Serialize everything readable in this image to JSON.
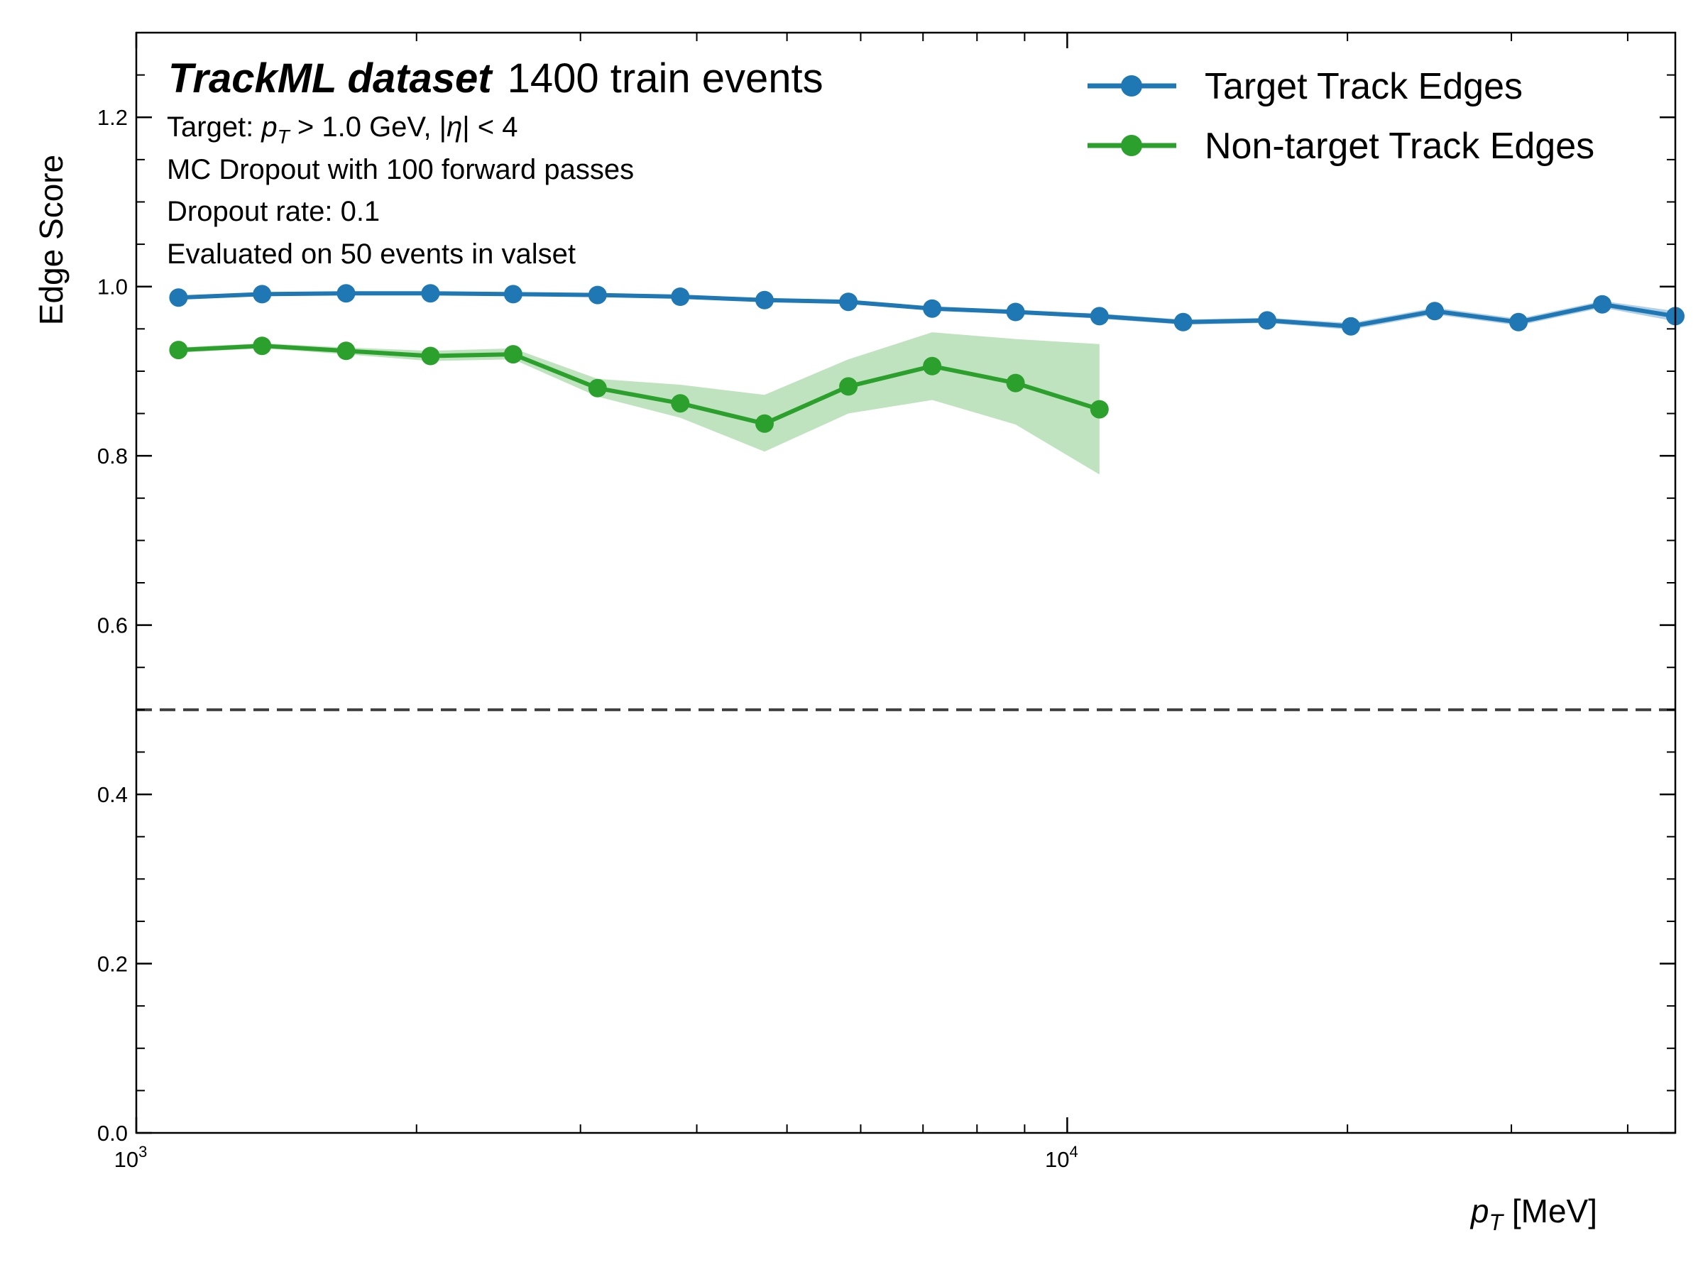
{
  "chart_data": {
    "type": "line",
    "title_bold": "TrackML dataset",
    "title_rest": "1400 train events",
    "annotations": {
      "target_prefix": "Target: ",
      "target_pt": "p",
      "target_pt_sub": "T",
      "target_rest": " > 1.0 GeV, |",
      "target_eta": "η",
      "target_tail": "| < 4",
      "line2": "MC Dropout with 100 forward passes",
      "line3": "Dropout rate: 0.1",
      "line4": "Evaluated on 50 events in valset"
    },
    "xlabel": {
      "symbol": "p",
      "sub": "T",
      "unit": " [MeV]"
    },
    "ylabel": "Edge Score",
    "xscale": "log",
    "xlim": [
      1000,
      45000
    ],
    "ylim": [
      0.0,
      1.3
    ],
    "yticks": [
      "0.0",
      "0.2",
      "0.4",
      "0.6",
      "0.8",
      "1.0",
      "1.2"
    ],
    "xticks": [
      {
        "base": "10",
        "exp": "3"
      },
      {
        "base": "10",
        "exp": "4"
      }
    ],
    "threshold": 0.5,
    "legend_position": "top-right",
    "colors": {
      "target": "#1f77b4",
      "non_target": "#2ca02c",
      "non_target_band": "#2ca02c",
      "threshold": "#404040"
    },
    "series": [
      {
        "name": "Target Track Edges",
        "x": [
          1110,
          1365,
          1680,
          2070,
          2540,
          3130,
          3840,
          4730,
          5820,
          7160,
          8800,
          10830,
          13320,
          16400,
          20170,
          24820,
          30530,
          37560,
          45000
        ],
        "y": [
          0.987,
          0.991,
          0.992,
          0.992,
          0.991,
          0.99,
          0.988,
          0.984,
          0.982,
          0.974,
          0.97,
          0.965,
          0.958,
          0.96,
          0.953,
          0.971,
          0.958,
          0.979,
          0.965
        ],
        "band_low": [
          0.985,
          0.99,
          0.991,
          0.991,
          0.99,
          0.989,
          0.987,
          0.982,
          0.98,
          0.972,
          0.968,
          0.962,
          0.955,
          0.957,
          0.949,
          0.967,
          0.954,
          0.975,
          0.959
        ],
        "band_high": [
          0.989,
          0.992,
          0.993,
          0.993,
          0.992,
          0.991,
          0.989,
          0.986,
          0.984,
          0.976,
          0.972,
          0.968,
          0.961,
          0.963,
          0.957,
          0.975,
          0.962,
          0.983,
          0.971
        ]
      },
      {
        "name": "Non-target Track Edges",
        "x": [
          1110,
          1365,
          1680,
          2070,
          2540,
          3130,
          3840,
          4730,
          5820,
          7160,
          8800,
          10830
        ],
        "y": [
          0.925,
          0.93,
          0.924,
          0.918,
          0.92,
          0.88,
          0.862,
          0.838,
          0.882,
          0.906,
          0.886,
          0.855
        ],
        "band_low": [
          0.922,
          0.927,
          0.92,
          0.912,
          0.914,
          0.87,
          0.845,
          0.805,
          0.85,
          0.866,
          0.837,
          0.778
        ],
        "band_high": [
          0.928,
          0.933,
          0.928,
          0.924,
          0.927,
          0.891,
          0.884,
          0.872,
          0.914,
          0.946,
          0.938,
          0.932
        ]
      }
    ]
  }
}
